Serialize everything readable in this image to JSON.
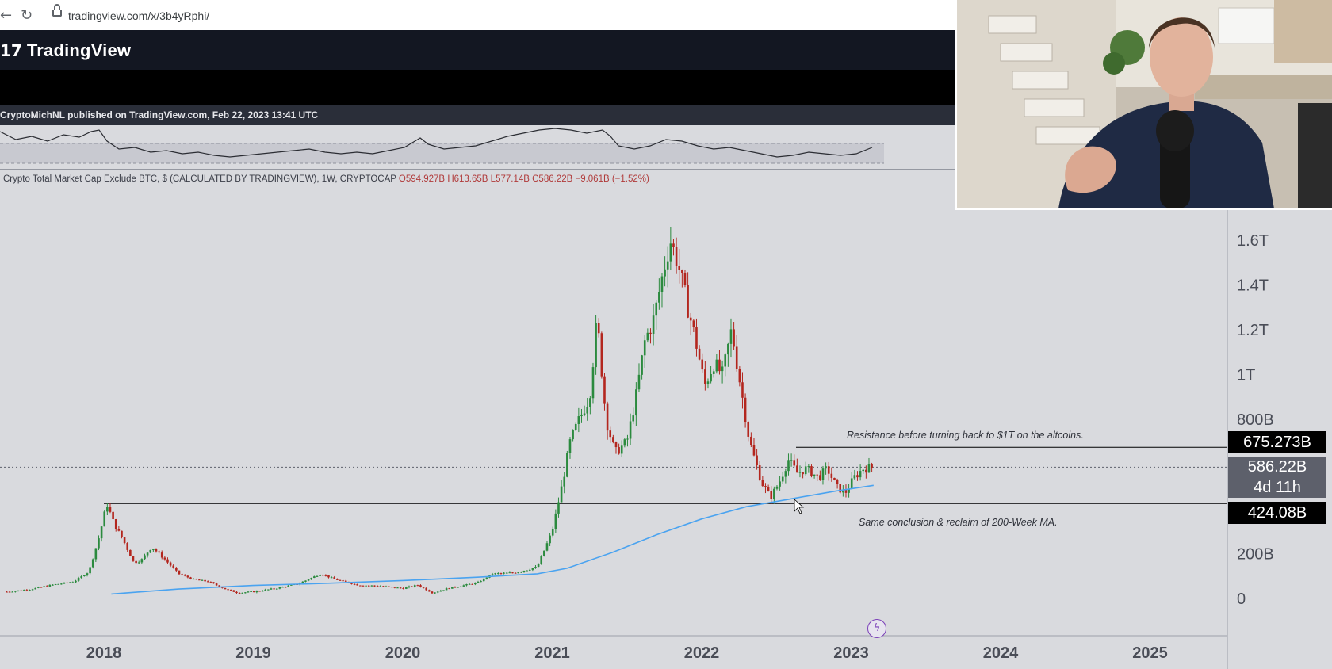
{
  "browser": {
    "back_glyph": "←",
    "reload_glyph": "↻",
    "url": "tradingview.com/x/3b4yRphi/"
  },
  "tv_header": {
    "logo_mark": "17",
    "logo_text": "TradingView"
  },
  "publish_line": "CryptoMichNL published on TradingView.com, Feb 22, 2023 13:41 UTC",
  "series_info": {
    "name": "Crypto Total Market Cap Exclude BTC, $ (CALCULATED BY TRADINGVIEW), 1W, CRYPTOCAP",
    "o": "O594.927B",
    "h": "H613.65B",
    "l": "L577.14B",
    "c": "C586.22B",
    "chg": "−9.061B (−1.52%)"
  },
  "annotations": {
    "resistance": "Resistance before turning back to $1T on the altcoins.",
    "support": "Same conclusion & reclaim of 200-Week MA."
  },
  "price_labels": {
    "resistance": "675.273B",
    "last_price": "586.22B",
    "countdown": "4d 11h",
    "support": "424.08B"
  },
  "colors": {
    "up": "#2b8a3e",
    "down": "#b3261e",
    "ma": "#4aa3f0",
    "label_bg": "#000000",
    "last_bg": "#5d606b",
    "bg": "#d9dade"
  },
  "chart_data": {
    "type": "candlestick",
    "title": "Crypto Total Market Cap Exclude BTC, $ (CALCULATED BY TRADINGVIEW), 1W, CRYPTOCAP",
    "y_unit": "USD",
    "y_ticks": [
      {
        "v": 0,
        "label": "0"
      },
      {
        "v": 200,
        "label": "200B"
      },
      {
        "v": 800,
        "label": "800B"
      },
      {
        "v": 1000,
        "label": "1T"
      },
      {
        "v": 1200,
        "label": "1.2T"
      },
      {
        "v": 1400,
        "label": "1.4T"
      },
      {
        "v": 1600,
        "label": "1.6T"
      }
    ],
    "x_ticks": [
      "2018",
      "2019",
      "2020",
      "2021",
      "2022",
      "2023",
      "2024",
      "2025"
    ],
    "ylim": [
      -30,
      1750
    ],
    "xlim": [
      2017.35,
      2025.55
    ],
    "horizontal_lines": [
      675.273,
      424.08,
      586.22
    ],
    "close_path": [
      [
        2017.35,
        30
      ],
      [
        2017.5,
        40
      ],
      [
        2017.65,
        60
      ],
      [
        2017.8,
        75
      ],
      [
        2017.9,
        120
      ],
      [
        2017.97,
        280
      ],
      [
        2018.02,
        424
      ],
      [
        2018.07,
        330
      ],
      [
        2018.13,
        260
      ],
      [
        2018.2,
        160
      ],
      [
        2018.25,
        170
      ],
      [
        2018.32,
        230
      ],
      [
        2018.4,
        180
      ],
      [
        2018.5,
        110
      ],
      [
        2018.6,
        85
      ],
      [
        2018.7,
        75
      ],
      [
        2018.82,
        40
      ],
      [
        2018.9,
        25
      ],
      [
        2019.0,
        30
      ],
      [
        2019.15,
        45
      ],
      [
        2019.3,
        65
      ],
      [
        2019.45,
        110
      ],
      [
        2019.55,
        85
      ],
      [
        2019.7,
        60
      ],
      [
        2019.85,
        55
      ],
      [
        2020.0,
        45
      ],
      [
        2020.1,
        60
      ],
      [
        2020.2,
        25
      ],
      [
        2020.3,
        45
      ],
      [
        2020.5,
        70
      ],
      [
        2020.6,
        110
      ],
      [
        2020.75,
        115
      ],
      [
        2020.9,
        140
      ],
      [
        2021.0,
        300
      ],
      [
        2021.07,
        520
      ],
      [
        2021.12,
        700
      ],
      [
        2021.18,
        800
      ],
      [
        2021.25,
        900
      ],
      [
        2021.3,
        1250
      ],
      [
        2021.36,
        800
      ],
      [
        2021.42,
        650
      ],
      [
        2021.5,
        700
      ],
      [
        2021.56,
        900
      ],
      [
        2021.62,
        1150
      ],
      [
        2021.68,
        1250
      ],
      [
        2021.74,
        1450
      ],
      [
        2021.79,
        1600
      ],
      [
        2021.84,
        1500
      ],
      [
        2021.9,
        1320
      ],
      [
        2021.96,
        1150
      ],
      [
        2022.02,
        950
      ],
      [
        2022.08,
        1050
      ],
      [
        2022.14,
        1000
      ],
      [
        2022.2,
        1200
      ],
      [
        2022.26,
        950
      ],
      [
        2022.32,
        700
      ],
      [
        2022.4,
        520
      ],
      [
        2022.46,
        450
      ],
      [
        2022.52,
        520
      ],
      [
        2022.58,
        620
      ],
      [
        2022.64,
        560
      ],
      [
        2022.7,
        580
      ],
      [
        2022.78,
        540
      ],
      [
        2022.84,
        580
      ],
      [
        2022.9,
        500
      ],
      [
        2022.96,
        470
      ],
      [
        2023.02,
        540
      ],
      [
        2023.08,
        580
      ],
      [
        2023.14,
        586
      ]
    ],
    "ma200_path": [
      [
        2018.05,
        20
      ],
      [
        2018.5,
        42
      ],
      [
        2019.0,
        58
      ],
      [
        2019.5,
        68
      ],
      [
        2020.0,
        80
      ],
      [
        2020.5,
        95
      ],
      [
        2020.9,
        110
      ],
      [
        2021.1,
        135
      ],
      [
        2021.4,
        205
      ],
      [
        2021.7,
        285
      ],
      [
        2022.0,
        355
      ],
      [
        2022.3,
        410
      ],
      [
        2022.6,
        445
      ],
      [
        2022.9,
        480
      ],
      [
        2023.15,
        505
      ]
    ]
  }
}
